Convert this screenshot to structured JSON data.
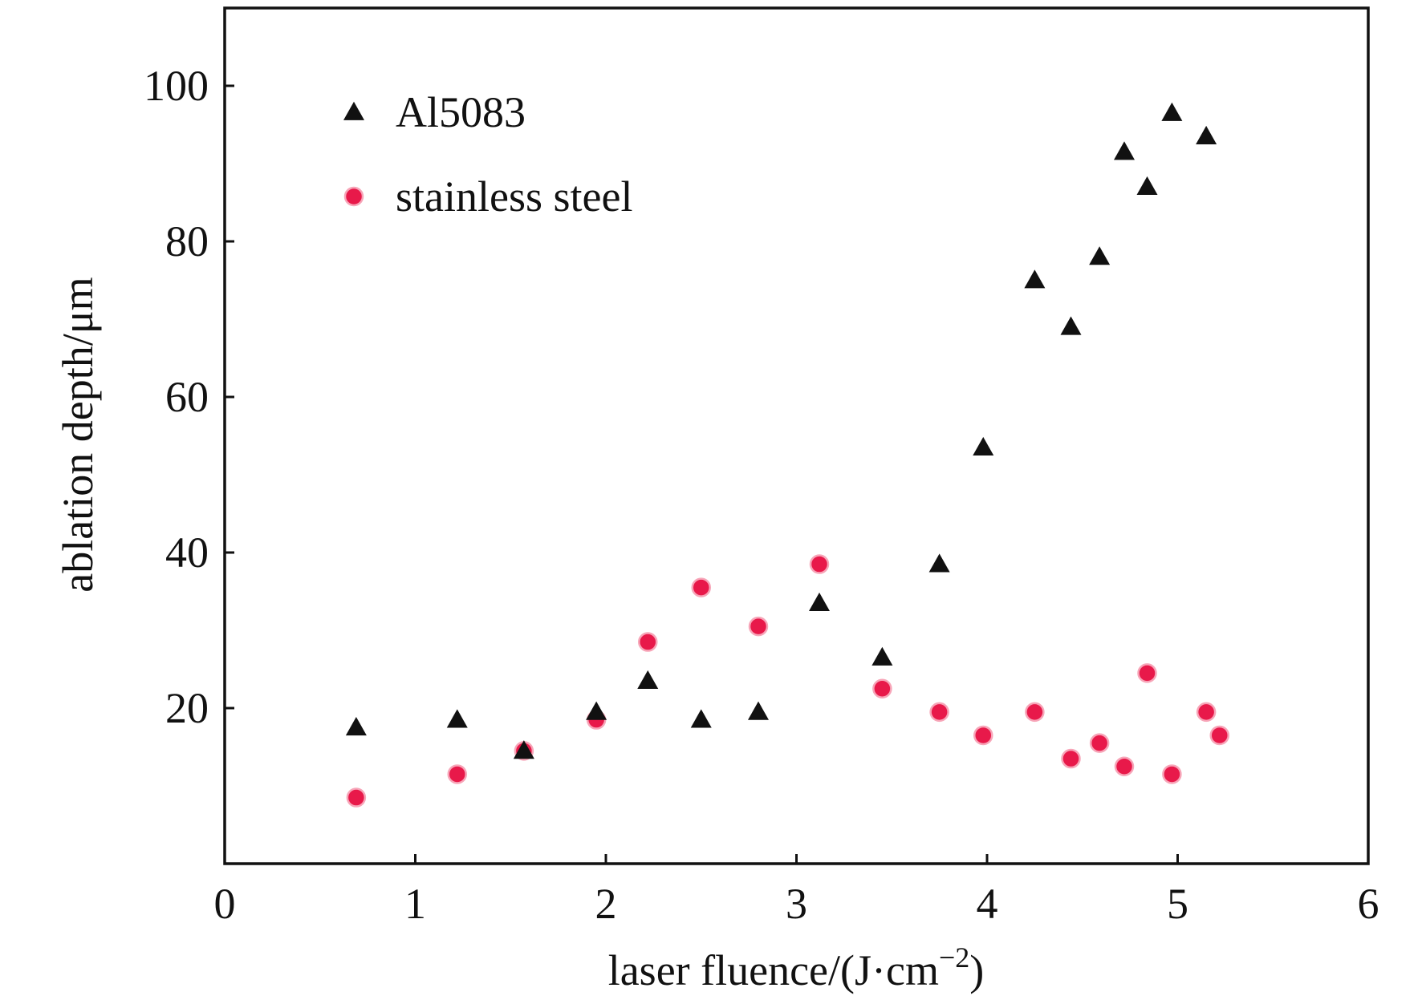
{
  "chart_data": {
    "type": "scatter",
    "xlabel": "laser fluence/(J·cm",
    "xlabel_sup": "−2",
    "xlabel_tail": ")",
    "ylabel": "ablation depth/μm",
    "xlim": [
      0,
      6
    ],
    "ylim": [
      0,
      110
    ],
    "x_ticks": [
      "0",
      "1",
      "2",
      "3",
      "4",
      "5",
      "6"
    ],
    "y_ticks": [
      "20",
      "40",
      "60",
      "80",
      "100"
    ],
    "grid": false,
    "legend_position": "top-left",
    "series": [
      {
        "name": "Al5083",
        "marker": "triangle",
        "color": "#111111",
        "points": [
          [
            0.69,
            17.5
          ],
          [
            1.22,
            18.5
          ],
          [
            1.57,
            14.5
          ],
          [
            1.95,
            19.5
          ],
          [
            2.22,
            23.5
          ],
          [
            2.5,
            18.5
          ],
          [
            2.8,
            19.5
          ],
          [
            3.12,
            33.5
          ],
          [
            3.45,
            26.5
          ],
          [
            3.75,
            38.5
          ],
          [
            3.98,
            53.5
          ],
          [
            4.25,
            75
          ],
          [
            4.44,
            69
          ],
          [
            4.59,
            78
          ],
          [
            4.72,
            91.5
          ],
          [
            4.84,
            87
          ],
          [
            4.97,
            96.5
          ],
          [
            5.15,
            93.5
          ]
        ]
      },
      {
        "name": "stainless steel",
        "marker": "circle",
        "color": "#e8194a",
        "points": [
          [
            0.69,
            8.5
          ],
          [
            1.22,
            11.5
          ],
          [
            1.57,
            14.5
          ],
          [
            1.95,
            18.5
          ],
          [
            2.22,
            28.5
          ],
          [
            2.5,
            35.5
          ],
          [
            2.8,
            30.5
          ],
          [
            3.12,
            38.5
          ],
          [
            3.45,
            22.5
          ],
          [
            3.75,
            19.5
          ],
          [
            3.98,
            16.5
          ],
          [
            4.25,
            19.5
          ],
          [
            4.44,
            13.5
          ],
          [
            4.59,
            15.5
          ],
          [
            4.72,
            12.5
          ],
          [
            4.84,
            24.5
          ],
          [
            4.97,
            11.5
          ],
          [
            5.15,
            19.5
          ],
          [
            5.22,
            16.5
          ]
        ]
      }
    ]
  }
}
